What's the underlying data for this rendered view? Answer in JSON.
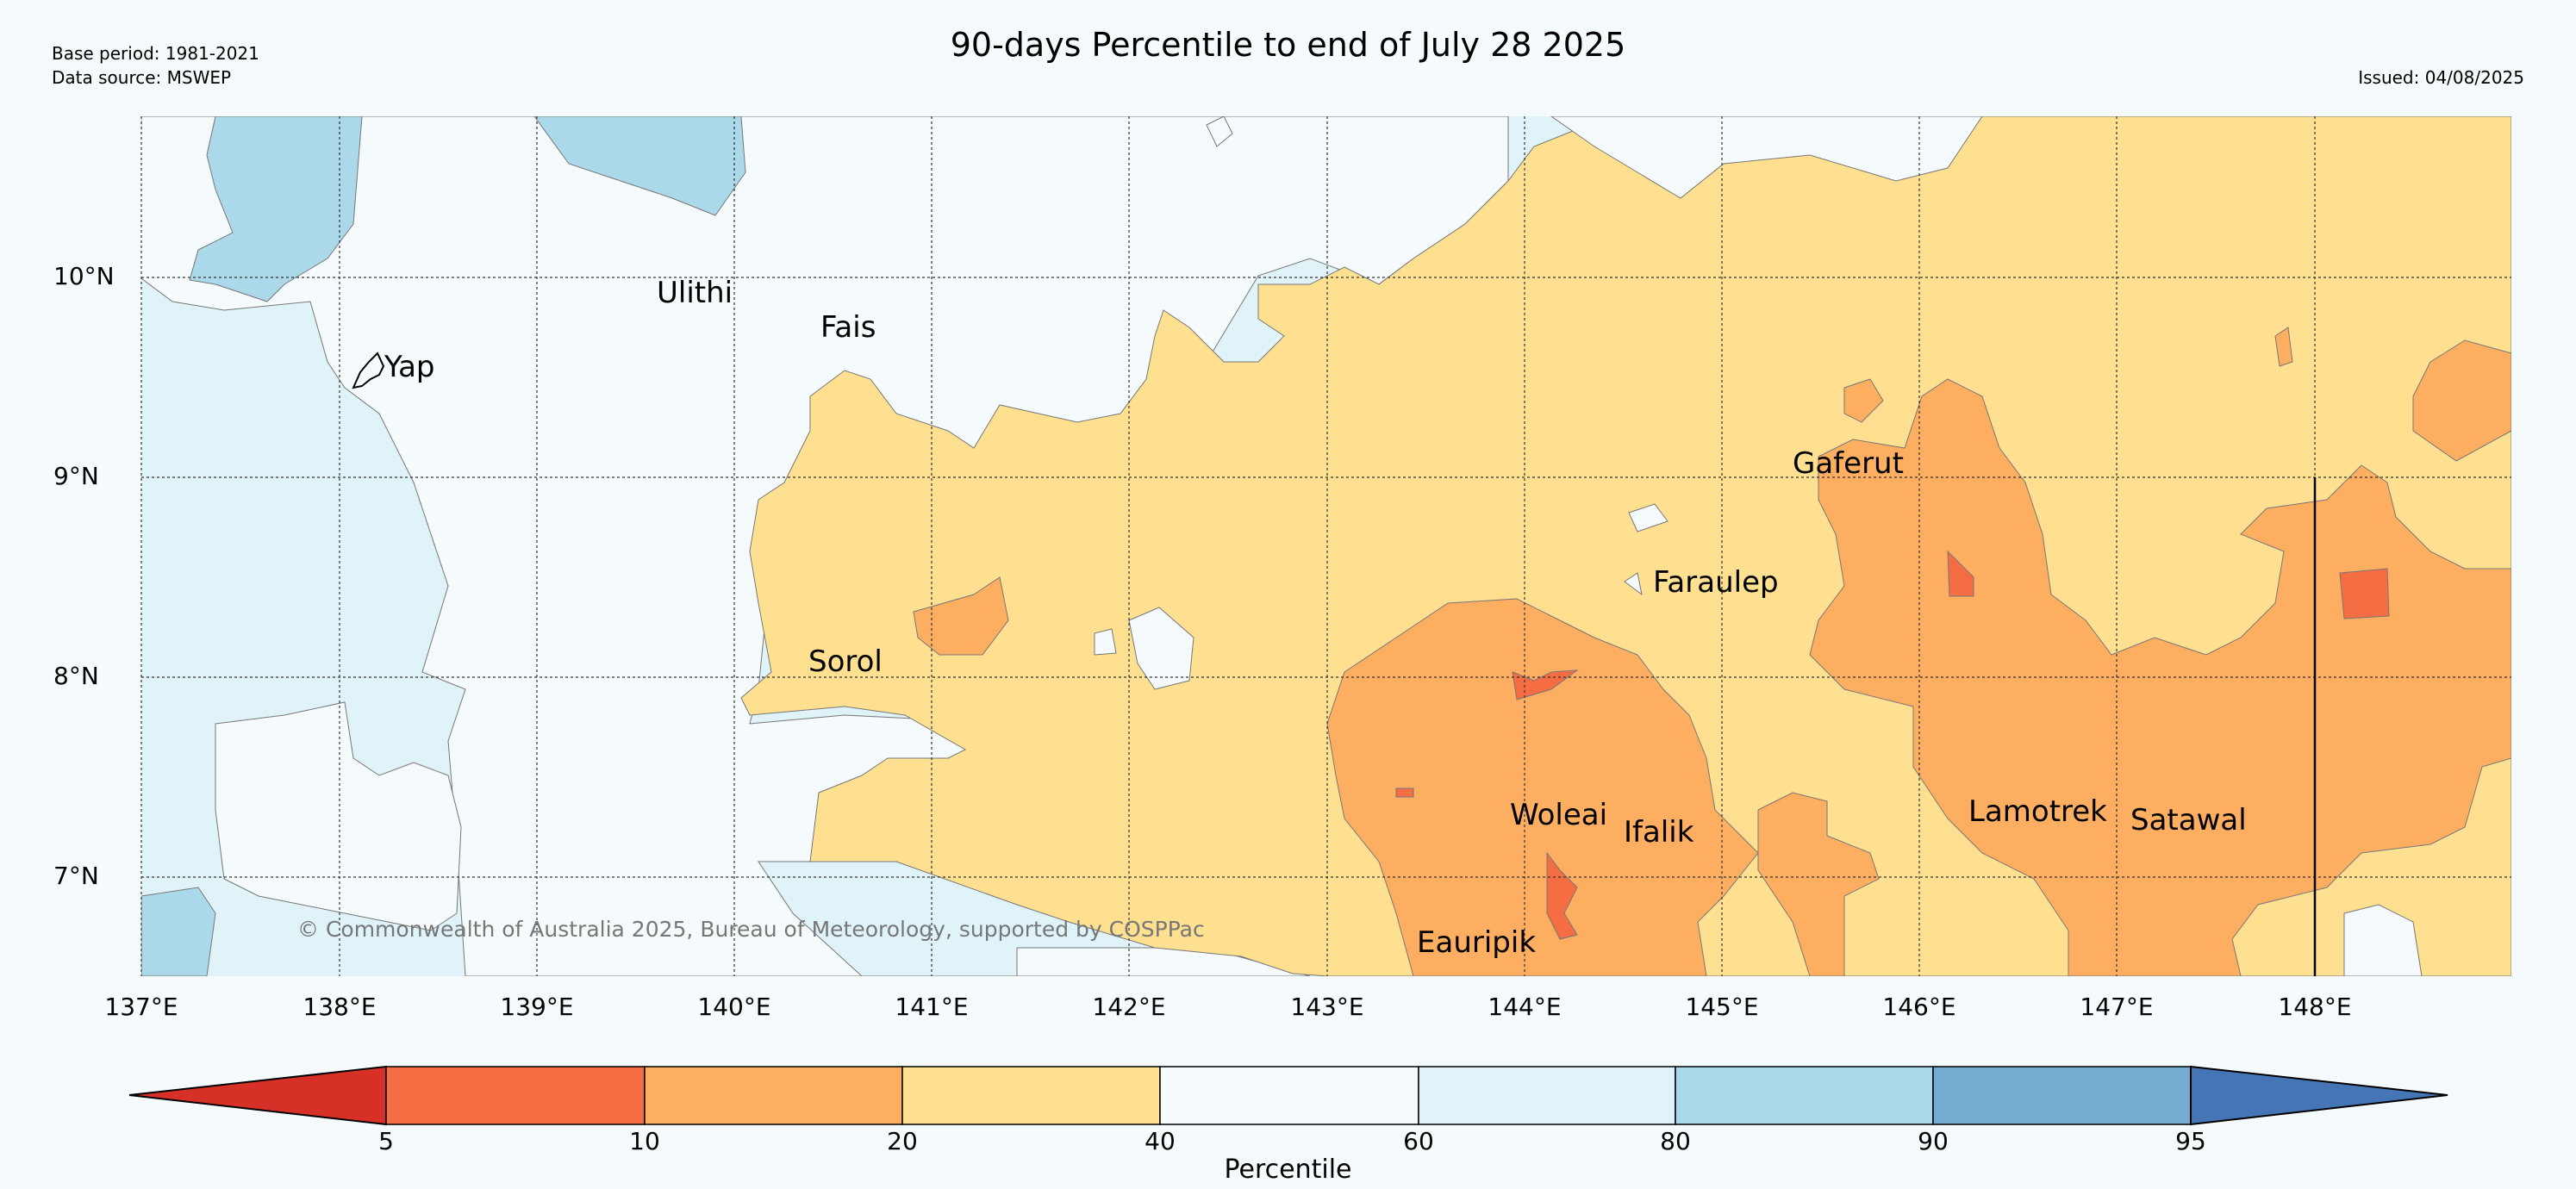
{
  "header": {
    "title": "90-days Percentile to end of July 28 2025",
    "base_period": "Base period: 1981-2021",
    "data_source": "Data source: MSWEP",
    "issued": "Issued: 04/08/2025"
  },
  "map": {
    "latitude_labels": [
      "10°N",
      "9°N",
      "8°N",
      "7°N"
    ],
    "longitude_labels": [
      "137°E",
      "138°E",
      "139°E",
      "140°E",
      "141°E",
      "142°E",
      "143°E",
      "144°E",
      "145°E",
      "146°E",
      "147°E",
      "148°E"
    ],
    "islands": [
      {
        "name": "Ulithi"
      },
      {
        "name": "Yap"
      },
      {
        "name": "Fais"
      },
      {
        "name": "Sorol"
      },
      {
        "name": "Gaferut"
      },
      {
        "name": "Faraulep"
      },
      {
        "name": "Woleai"
      },
      {
        "name": "Ifalik"
      },
      {
        "name": "Eauripik"
      },
      {
        "name": "Lamotrek"
      },
      {
        "name": "Satawal"
      }
    ],
    "copyright": "© Commonwealth of Australia 2025, Bureau of Meteorology, supported by COSPPac"
  },
  "legend": {
    "label": "Percentile",
    "ticks": [
      "5",
      "10",
      "20",
      "40",
      "60",
      "80",
      "90",
      "95"
    ],
    "colors": [
      "#d73027",
      "#f46d43",
      "#fdae61",
      "#fee090",
      "#f5fafd",
      "#e0f3f8",
      "#abd9e9",
      "#74add1",
      "#4575b4"
    ]
  }
}
